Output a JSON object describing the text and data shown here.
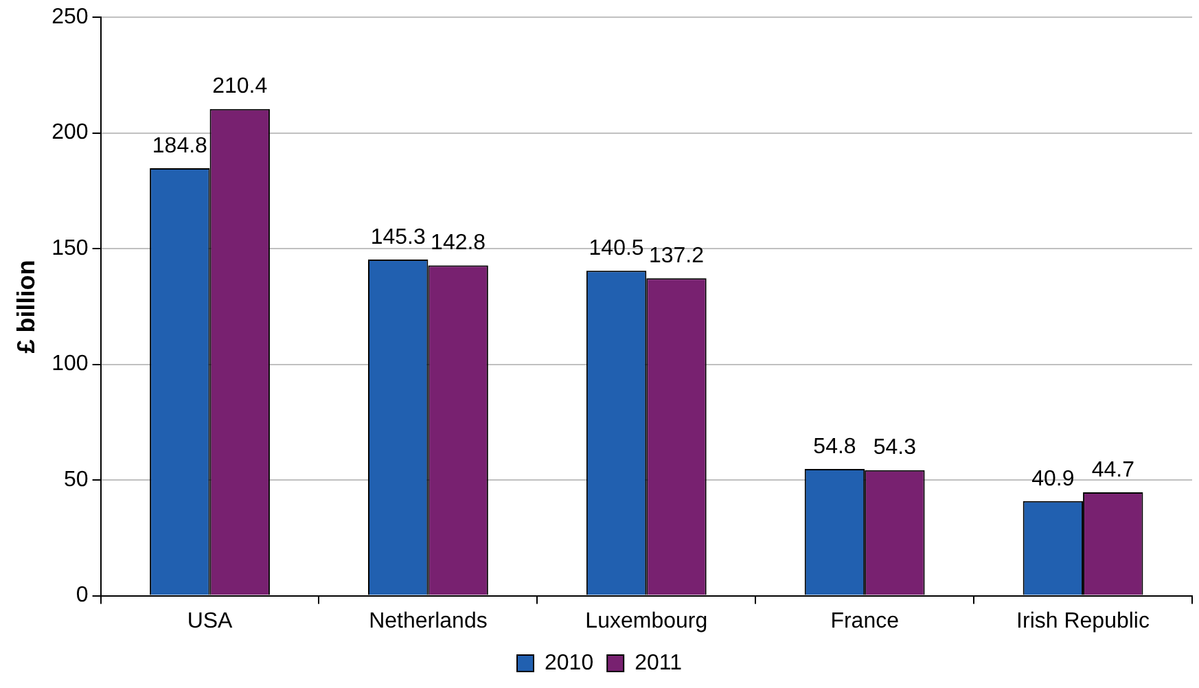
{
  "chart_data": {
    "type": "bar",
    "ylabel": "£ billion",
    "categories": [
      "USA",
      "Netherlands",
      "Luxembourg",
      "France",
      "Irish Republic"
    ],
    "series": [
      {
        "name": "2010",
        "color": "#2160b0",
        "values": [
          184.8,
          145.3,
          140.5,
          54.8,
          40.9
        ]
      },
      {
        "name": "2011",
        "color": "#782170",
        "values": [
          210.4,
          142.8,
          137.2,
          54.3,
          44.7
        ]
      }
    ],
    "ylim": [
      0,
      250
    ],
    "yticks": [
      0,
      50,
      100,
      150,
      200,
      250
    ],
    "grid": "y",
    "legend": "bottom",
    "data_labels": true
  }
}
